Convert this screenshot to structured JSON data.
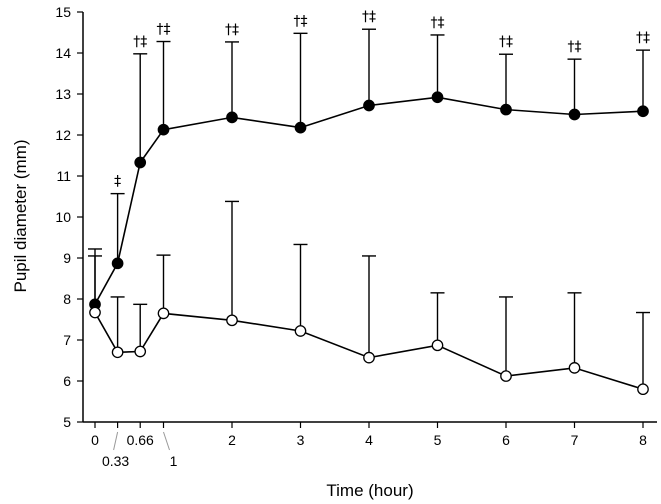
{
  "chart_data": {
    "type": "line",
    "title": "",
    "xlabel": "Time (hour)",
    "ylabel": "Pupil diameter (mm)",
    "xlim": [
      -0.35,
      8.45
    ],
    "ylim": [
      5,
      15
    ],
    "yticks": [
      5,
      6,
      7,
      8,
      9,
      10,
      11,
      12,
      13,
      14,
      15
    ],
    "xticks_main": [
      {
        "x": 0,
        "label": "0"
      },
      {
        "x": 0.66,
        "label": "0.66"
      },
      {
        "x": 2,
        "label": "2"
      },
      {
        "x": 3,
        "label": "3"
      },
      {
        "x": 4,
        "label": "4"
      },
      {
        "x": 5,
        "label": "5"
      },
      {
        "x": 6,
        "label": "6"
      },
      {
        "x": 7,
        "label": "7"
      },
      {
        "x": 8,
        "label": "8"
      }
    ],
    "xticks_offset": [
      {
        "x": 0.33,
        "label": "0.33"
      },
      {
        "x": 1,
        "label": "1"
      }
    ],
    "x": [
      0,
      0.33,
      0.66,
      1,
      2,
      3,
      4,
      5,
      6,
      7,
      8
    ],
    "series": [
      {
        "name": "filled",
        "marker": "filled-circle",
        "values": [
          7.87,
          8.87,
          11.33,
          12.13,
          12.43,
          12.18,
          12.72,
          12.92,
          12.62,
          12.5,
          12.58
        ],
        "error_upper": [
          9.05,
          10.57,
          13.98,
          14.28,
          14.27,
          14.48,
          14.58,
          14.44,
          13.97,
          13.85,
          14.07
        ],
        "significance": [
          "",
          "‡",
          "†‡",
          "†‡",
          "†‡",
          "†‡",
          "†‡",
          "†‡",
          "†‡",
          "†‡",
          "†‡"
        ]
      },
      {
        "name": "open",
        "marker": "open-circle",
        "values": [
          7.67,
          6.7,
          6.72,
          7.65,
          7.48,
          7.22,
          6.57,
          6.87,
          6.12,
          6.32,
          5.8
        ],
        "error_upper": [
          9.22,
          8.05,
          7.87,
          9.07,
          10.38,
          9.33,
          9.05,
          8.15,
          8.05,
          8.15,
          7.67
        ]
      }
    ]
  }
}
